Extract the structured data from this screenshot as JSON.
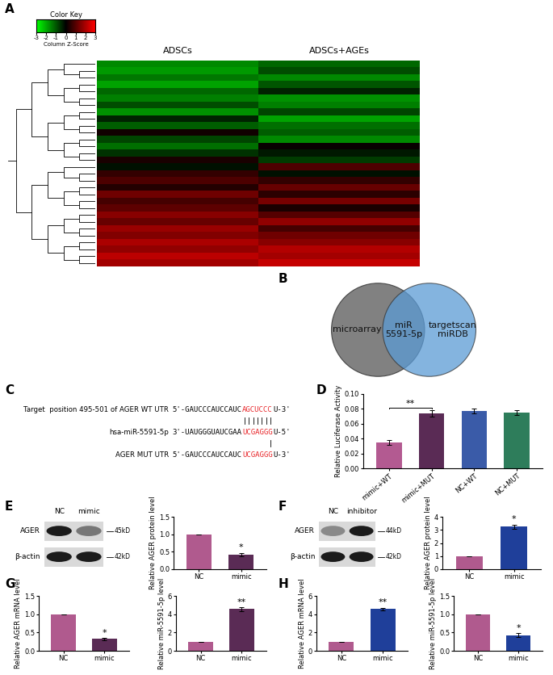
{
  "panel_labels": [
    "A",
    "B",
    "C",
    "D",
    "E",
    "F",
    "G",
    "H"
  ],
  "heatmap": {
    "color_key": {
      "title": "Color Key",
      "label": "Column Z-Score",
      "range": [
        -3,
        3
      ],
      "ticks": [
        -3,
        -2,
        -1,
        0,
        1,
        2,
        3
      ],
      "colors": [
        "#00ff00",
        "#000000",
        "#ff0000"
      ]
    },
    "columns": [
      "ADSCs",
      "ADSCs+AGEs"
    ],
    "cells": [
      [
        -1.6,
        -1.2
      ],
      [
        -1.8,
        -0.9
      ],
      [
        -1.4,
        -1.6
      ],
      [
        -1.9,
        -1.0
      ],
      [
        -1.2,
        -0.4
      ],
      [
        -1.5,
        -1.7
      ],
      [
        -0.9,
        -1.5
      ],
      [
        -1.7,
        -0.8
      ],
      [
        -0.4,
        -1.9
      ],
      [
        -1.1,
        -1.3
      ],
      [
        0.2,
        -1.1
      ],
      [
        -0.8,
        -1.6
      ],
      [
        -1.3,
        0.1
      ],
      [
        -0.6,
        -0.3
      ],
      [
        0.3,
        -0.7
      ],
      [
        -0.2,
        0.9
      ],
      [
        0.6,
        -0.2
      ],
      [
        0.9,
        0.6
      ],
      [
        0.4,
        1.2
      ],
      [
        1.3,
        0.5
      ],
      [
        0.8,
        1.4
      ],
      [
        1.1,
        0.3
      ],
      [
        1.6,
        1.0
      ],
      [
        1.2,
        1.7
      ],
      [
        1.8,
        0.8
      ],
      [
        1.5,
        1.3
      ],
      [
        2.0,
        1.6
      ],
      [
        1.7,
        2.1
      ],
      [
        2.2,
        1.9
      ],
      [
        1.9,
        2.3
      ]
    ]
  },
  "venn": {
    "sets": [
      "microarray",
      "targetscan\nmiRDB"
    ],
    "intersection": "miR\n5591-5p",
    "colors": [
      "#6b6b6b",
      "#5b9bd5"
    ]
  },
  "sequence": {
    "rows": [
      {
        "label": "Target  position 495-501 of AGER WT UTR",
        "segments": [
          {
            "text": "5'-GAUCCCAUCCAUC",
            "color": "#000000"
          },
          {
            "text": "AGCUCCC",
            "color": "#e8262a"
          },
          {
            "text": "U-3'",
            "color": "#000000"
          }
        ]
      },
      {
        "label": "hsa-miR-5591-5p",
        "segments": [
          {
            "text": "3'-UAUGGGUAUCGAA",
            "color": "#000000"
          },
          {
            "text": "UCGAGGG",
            "color": "#e8262a"
          },
          {
            "text": "U-5'",
            "color": "#000000"
          }
        ]
      },
      {
        "label": "AGER MUT UTR",
        "segments": [
          {
            "text": "5'-GAUCCCAUCCAUC",
            "color": "#000000"
          },
          {
            "text": "UCGAGGG",
            "color": "#e8262a"
          },
          {
            "text": "U-3'",
            "color": "#000000"
          }
        ]
      }
    ]
  },
  "chart_data": [
    {
      "type": "bar",
      "ylabel": "Relative Luciferase Activity",
      "categories": [
        "mimic+WT",
        "mimic+MUT",
        "NC+WT",
        "NC+MUT"
      ],
      "values": [
        0.035,
        0.074,
        0.077,
        0.075
      ],
      "errors": [
        0.003,
        0.004,
        0.003,
        0.003
      ],
      "colors": [
        "#b35a91",
        "#5a2b55",
        "#3a5ba8",
        "#2e7d5b"
      ],
      "ylim": [
        0,
        0.1
      ],
      "yticks": [
        {
          "value": 0,
          "label": "0.00"
        },
        {
          "value": 0.02,
          "label": "0.02"
        },
        {
          "value": 0.04,
          "label": "0.04"
        },
        {
          "value": 0.06,
          "label": "0.06"
        },
        {
          "value": 0.08,
          "label": "0.08"
        },
        {
          "value": 0.1,
          "label": "0.10"
        }
      ],
      "annotations": [
        {
          "text": "**",
          "from": "mimic+WT",
          "to": "mimic+MUT"
        }
      ]
    },
    {
      "type": "bar",
      "ylabel": "Relative AGER protein level",
      "categories": [
        "NC",
        "mimic"
      ],
      "values": [
        1,
        0.42
      ],
      "errors": [
        0,
        0.05
      ],
      "colors": [
        "#b05a8e",
        "#5a2b55"
      ],
      "ylim": [
        0,
        1.5
      ],
      "yticks": [
        {
          "value": 0,
          "label": "0.0"
        },
        {
          "value": 0.5,
          "label": "0.5"
        },
        {
          "value": 1,
          "label": "1.0"
        },
        {
          "value": 1.5,
          "label": "1.5"
        }
      ],
      "annotations": [
        {
          "text": "*",
          "category": "mimic"
        }
      ]
    },
    {
      "type": "bar",
      "ylabel": "Relative AGER protein level",
      "categories": [
        "NC",
        "mimic"
      ],
      "values": [
        1,
        3.25
      ],
      "errors": [
        0,
        0.15
      ],
      "colors": [
        "#b05a8e",
        "#1f3f9a"
      ],
      "ylim": [
        0,
        4
      ],
      "yticks": [
        0,
        1,
        2,
        3,
        4
      ],
      "annotations": [
        {
          "text": "*",
          "category": "mimic"
        }
      ]
    },
    {
      "type": "bar",
      "ylabel": "Relative AGER mRNA level",
      "categories": [
        "NC",
        "mimic"
      ],
      "values": [
        1,
        0.32
      ],
      "errors": [
        0,
        0.03
      ],
      "colors": [
        "#b05a8e",
        "#5a2b55"
      ],
      "ylim": [
        0,
        1.5
      ],
      "yticks": [
        {
          "value": 0,
          "label": "0.0"
        },
        {
          "value": 0.5,
          "label": "0.5"
        },
        {
          "value": 1,
          "label": "1.0"
        },
        {
          "value": 1.5,
          "label": "1.5"
        }
      ],
      "annotations": [
        {
          "text": "*",
          "category": "mimic"
        }
      ]
    },
    {
      "type": "bar",
      "ylabel": "Relative miR-5591-5p level",
      "categories": [
        "NC",
        "mimic"
      ],
      "values": [
        1,
        4.55
      ],
      "errors": [
        0,
        0.2
      ],
      "colors": [
        "#b05a8e",
        "#5a2b55"
      ],
      "ylim": [
        0,
        6
      ],
      "yticks": [
        0,
        2,
        4,
        6
      ],
      "annotations": [
        {
          "text": "**",
          "category": "mimic"
        }
      ]
    },
    {
      "type": "bar",
      "ylabel": "Relative AGER mRNA level",
      "categories": [
        "NC",
        "mimic"
      ],
      "values": [
        1,
        4.55
      ],
      "errors": [
        0,
        0.15
      ],
      "colors": [
        "#b05a8e",
        "#1f3f9a"
      ],
      "ylim": [
        0,
        6
      ],
      "yticks": [
        0,
        2,
        4,
        6
      ],
      "annotations": [
        {
          "text": "**",
          "category": "mimic"
        }
      ]
    },
    {
      "type": "bar",
      "ylabel": "Relative miR-5591-5p level",
      "categories": [
        "NC",
        "mimic"
      ],
      "values": [
        1,
        0.43
      ],
      "errors": [
        0,
        0.05
      ],
      "colors": [
        "#b05a8e",
        "#1f3f9a"
      ],
      "ylim": [
        0,
        1.5
      ],
      "yticks": [
        {
          "value": 0,
          "label": "0.0"
        },
        {
          "value": 0.5,
          "label": "0.5"
        },
        {
          "value": 1,
          "label": "1.0"
        },
        {
          "value": 1.5,
          "label": "1.5"
        }
      ],
      "annotations": [
        {
          "text": "*",
          "category": "mimic"
        }
      ]
    }
  ],
  "blots": [
    {
      "lanes": [
        "NC",
        "mimic"
      ],
      "bands": [
        "AGER",
        "β-actin"
      ],
      "sizes": [
        "45kD",
        "42kD"
      ]
    },
    {
      "lanes": [
        "NC",
        "inhibitor"
      ],
      "bands": [
        "AGER",
        "β-actin"
      ],
      "sizes": [
        "44kD",
        "42kD"
      ]
    }
  ]
}
